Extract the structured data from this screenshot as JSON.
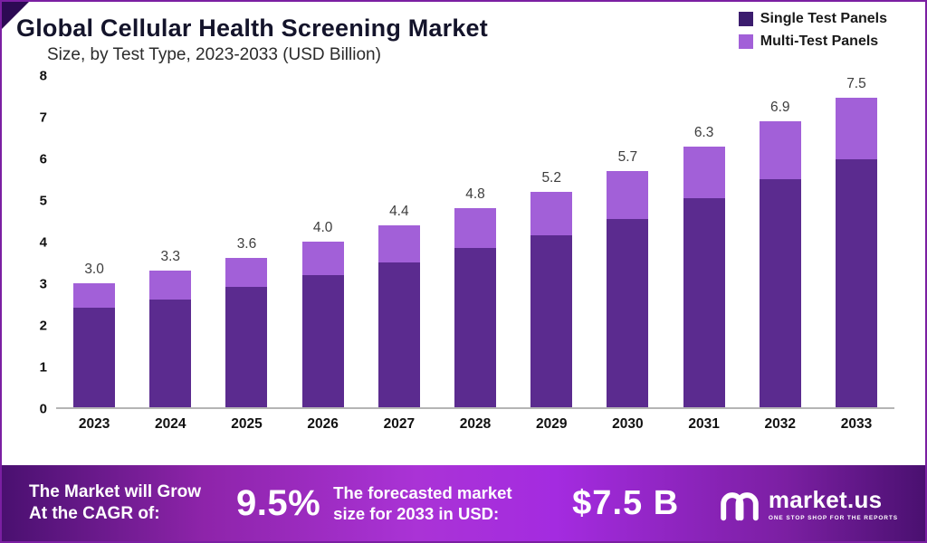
{
  "header": {
    "title": "Global Cellular Health Screening Market",
    "subtitle": "Size, by Test Type, 2023-2033 (USD Billion)"
  },
  "legend": {
    "items": [
      {
        "label": "Single Test Panels",
        "color": "#3b1c6e"
      },
      {
        "label": "Multi-Test Panels",
        "color": "#a260d8"
      }
    ]
  },
  "chart_data": {
    "type": "bar",
    "stacked": true,
    "title": "Global Cellular Health Screening Market",
    "subtitle": "Size, by Test Type, 2023-2033 (USD Billion)",
    "categories": [
      "2023",
      "2024",
      "2025",
      "2026",
      "2027",
      "2028",
      "2029",
      "2030",
      "2031",
      "2032",
      "2033"
    ],
    "series": [
      {
        "name": "Single Test Panels",
        "color": "#5b2b8f",
        "values": [
          2.4,
          2.6,
          2.9,
          3.2,
          3.5,
          3.85,
          4.15,
          4.55,
          5.05,
          5.5,
          6.0
        ]
      },
      {
        "name": "Multi-Test Panels",
        "color": "#a260d8",
        "values": [
          0.6,
          0.7,
          0.7,
          0.8,
          0.9,
          0.95,
          1.05,
          1.15,
          1.25,
          1.4,
          1.5
        ]
      }
    ],
    "totals": [
      "3.0",
      "3.3",
      "3.6",
      "4.0",
      "4.4",
      "4.8",
      "5.2",
      "5.7",
      "6.3",
      "6.9",
      "7.5"
    ],
    "ylim": [
      0,
      8
    ],
    "yticks": [
      "0",
      "1",
      "2",
      "3",
      "4",
      "5",
      "6",
      "7",
      "8"
    ],
    "grid": false,
    "legend_position": "top-right",
    "unit": "USD Billion"
  },
  "banner": {
    "left_line1": "The Market will Grow",
    "left_line2": "At the CAGR of:",
    "cagr": "9.5%",
    "mid_line1": "The forecasted market",
    "mid_line2": "size for 2033 in USD:",
    "value": "$7.5 B",
    "brand": "market.us",
    "tagline": "ONE STOP SHOP FOR THE REPORTS"
  }
}
